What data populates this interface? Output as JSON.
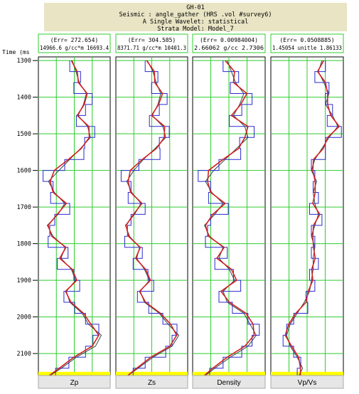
{
  "header": {
    "well": "GH-01",
    "seismic": "Seismic : angle_gather (HRS .vol #survey6)",
    "wavelet": "A Single Wavelet: statistical",
    "model": "Strata Model: Model_7"
  },
  "colors": {
    "header_bg": "#e8e4c4",
    "grid": "#2ecc2e",
    "curve_a": "#d42020",
    "curve_b": "#2a2ad0",
    "curve_c": "#2b4a4a",
    "marker": "#ffff00",
    "footer_bg": "#e6e6e6"
  },
  "chart_data": {
    "type": "line",
    "y_axis": {
      "label": "Time (ms",
      "range": [
        1290,
        2160
      ],
      "ticks": [
        1300,
        1400,
        1500,
        1600,
        1700,
        1800,
        1900,
        2000,
        2100
      ],
      "tick_labels": [
        "1300",
        "1400",
        "1500",
        "1600",
        "1700",
        "1800",
        "1900",
        "2000",
        "2100"
      ]
    },
    "grid": true,
    "tracks": [
      {
        "name": "Zp",
        "err_label": "(Err= 272.654)",
        "scale_label": "14966.6  g/cc*m  16693.4",
        "xlim": [
          14966.6,
          16693.4
        ],
        "series": [
          {
            "depth": [
              1300,
              1330,
              1360,
              1390,
              1420,
              1450,
              1480,
              1510,
              1540,
              1570,
              1600,
              1630,
              1660,
              1690,
              1720,
              1750,
              1780,
              1810,
              1840,
              1870,
              1900,
              1930,
              1960,
              1990,
              2020,
              2050,
              2080,
              2110,
              2140,
              2160
            ],
            "values": [
              15780,
              15870,
              15950,
              16120,
              16050,
              15920,
              16150,
              16220,
              15980,
              15720,
              15460,
              15210,
              15350,
              15600,
              15440,
              15180,
              15320,
              15610,
              15510,
              15760,
              15860,
              15640,
              15720,
              16020,
              16170,
              16480,
              16340,
              15880,
              15520,
              15250
            ]
          },
          {
            "depth": [
              1300,
              1330,
              1360,
              1390,
              1420,
              1450,
              1480,
              1510,
              1540,
              1570,
              1600,
              1630,
              1660,
              1690,
              1720,
              1750,
              1780,
              1810,
              1840,
              1870,
              1900,
              1930,
              1960,
              1990,
              2020,
              2050,
              2080,
              2110,
              2140,
              2160
            ],
            "values": [
              15720,
              15980,
              15820,
              16260,
              16100,
              15880,
              16320,
              16080,
              16060,
              15600,
              15080,
              15320,
              15260,
              15720,
              15360,
              15240,
              15200,
              15680,
              15420,
              15820,
              15960,
              15580,
              15840,
              16100,
              16420,
              16280,
              16100,
              15700,
              15380,
              15200
            ]
          },
          {
            "depth": [
              1300,
              1330,
              1360,
              1390,
              1420,
              1450,
              1480,
              1510,
              1540,
              1570,
              1600,
              1630,
              1660,
              1690,
              1720,
              1750,
              1780,
              1810,
              1840,
              1870,
              1900,
              1930,
              1960,
              1990,
              2020,
              2050,
              2080,
              2110,
              2140,
              2160
            ],
            "values": [
              15760,
              15900,
              15930,
              16140,
              16070,
              15900,
              16180,
              16190,
              16000,
              15690,
              15350,
              15250,
              15320,
              15640,
              15420,
              15200,
              15290,
              15630,
              15480,
              15780,
              15890,
              15620,
              15750,
              16050,
              16230,
              16420,
              16260,
              15820,
              15470,
              15230
            ]
          }
        ]
      },
      {
        "name": "Zs",
        "err_label": "(Err= 304.585)",
        "scale_label": "8371.71  g/cc*m  10401.3",
        "xlim": [
          8371.71,
          10401.3
        ],
        "series": [
          {
            "depth": [
              1300,
              1330,
              1360,
              1390,
              1420,
              1450,
              1480,
              1510,
              1540,
              1570,
              1600,
              1630,
              1660,
              1690,
              1720,
              1750,
              1780,
              1810,
              1840,
              1870,
              1900,
              1930,
              1960,
              1990,
              2020,
              2050,
              2080,
              2110,
              2140,
              2160
            ],
            "values": [
              9260,
              9420,
              9510,
              9640,
              9560,
              9400,
              9700,
              9780,
              9480,
              9150,
              8880,
              8680,
              8820,
              9080,
              8900,
              8640,
              8760,
              9040,
              8960,
              9180,
              9320,
              9060,
              9180,
              9600,
              9850,
              10150,
              9960,
              9420,
              9000,
              8720
            ]
          },
          {
            "depth": [
              1300,
              1330,
              1360,
              1390,
              1420,
              1450,
              1480,
              1510,
              1540,
              1570,
              1600,
              1630,
              1660,
              1690,
              1720,
              1750,
              1780,
              1810,
              1840,
              1870,
              1900,
              1930,
              1960,
              1990,
              2020,
              2050,
              2080,
              2110,
              2140,
              2160
            ],
            "values": [
              9200,
              9560,
              9380,
              9820,
              9600,
              9320,
              9880,
              9600,
              9620,
              9020,
              8520,
              8800,
              8720,
              9200,
              8800,
              8700,
              8620,
              9120,
              8860,
              9280,
              9440,
              8980,
              9300,
              9700,
              10100,
              9960,
              9780,
              9200,
              8860,
              8680
            ]
          },
          {
            "depth": [
              1300,
              1330,
              1360,
              1390,
              1420,
              1450,
              1480,
              1510,
              1540,
              1570,
              1600,
              1630,
              1660,
              1690,
              1720,
              1750,
              1780,
              1810,
              1840,
              1870,
              1900,
              1930,
              1960,
              1990,
              2020,
              2050,
              2080,
              2110,
              2140,
              2160
            ],
            "values": [
              9240,
              9460,
              9470,
              9690,
              9580,
              9380,
              9750,
              9740,
              9520,
              9120,
              8780,
              8720,
              8790,
              9110,
              8870,
              8660,
              8730,
              9060,
              8930,
              9210,
              9350,
              9040,
              9210,
              9630,
              9920,
              10090,
              9900,
              9360,
              8960,
              8710
            ]
          }
        ]
      },
      {
        "name": "Density",
        "err_label": "(Err= 0.00984004)",
        "scale_label": "2.66062  g/cc      2.7306",
        "xlim": [
          2.66062,
          2.7306
        ],
        "series": [
          {
            "depth": [
              1300,
              1330,
              1360,
              1390,
              1420,
              1450,
              1480,
              1510,
              1540,
              1570,
              1600,
              1630,
              1660,
              1690,
              1720,
              1750,
              1780,
              1810,
              1840,
              1870,
              1900,
              1930,
              1960,
              1990,
              2020,
              2050,
              2080,
              2110,
              2140,
              2160
            ],
            "values": [
              2.694,
              2.698,
              2.702,
              2.71,
              2.706,
              2.7,
              2.711,
              2.714,
              2.703,
              2.692,
              2.681,
              2.673,
              2.679,
              2.69,
              2.682,
              2.672,
              2.677,
              2.69,
              2.686,
              2.696,
              2.701,
              2.69,
              2.694,
              2.71,
              2.716,
              2.722,
              2.714,
              2.697,
              2.682,
              2.673
            ]
          },
          {
            "depth": [
              1300,
              1330,
              1360,
              1390,
              1420,
              1450,
              1480,
              1510,
              1540,
              1570,
              1600,
              1630,
              1660,
              1690,
              1720,
              1750,
              1780,
              1810,
              1840,
              1870,
              1900,
              1930,
              1960,
              1990,
              2020,
              2050,
              2080,
              2110,
              2140,
              2160
            ],
            "values": [
              2.69,
              2.705,
              2.697,
              2.718,
              2.708,
              2.696,
              2.72,
              2.706,
              2.707,
              2.686,
              2.666,
              2.678,
              2.676,
              2.695,
              2.678,
              2.675,
              2.673,
              2.694,
              2.682,
              2.7,
              2.707,
              2.686,
              2.699,
              2.714,
              2.725,
              2.718,
              2.708,
              2.69,
              2.677,
              2.67
            ]
          },
          {
            "depth": [
              1300,
              1330,
              1360,
              1390,
              1420,
              1450,
              1480,
              1510,
              1540,
              1570,
              1600,
              1630,
              1660,
              1690,
              1720,
              1750,
              1780,
              1810,
              1840,
              1870,
              1900,
              1930,
              1960,
              1990,
              2020,
              2050,
              2080,
              2110,
              2140,
              2160
            ],
            "values": [
              2.692,
              2.701,
              2.7,
              2.713,
              2.707,
              2.698,
              2.714,
              2.711,
              2.705,
              2.69,
              2.676,
              2.675,
              2.678,
              2.692,
              2.68,
              2.673,
              2.676,
              2.691,
              2.684,
              2.698,
              2.703,
              2.688,
              2.696,
              2.712,
              2.719,
              2.72,
              2.711,
              2.694,
              2.68,
              2.672
            ]
          }
        ]
      },
      {
        "name": "Vp/Vs",
        "err_label": "(Err= 0.0508885)",
        "scale_label": "1.45054  unitle  1.86133",
        "xlim": [
          1.45054,
          1.86133
        ],
        "series": [
          {
            "depth": [
              1300,
              1330,
              1360,
              1390,
              1420,
              1450,
              1480,
              1510,
              1540,
              1570,
              1600,
              1630,
              1660,
              1690,
              1720,
              1750,
              1780,
              1810,
              1840,
              1870,
              1900,
              1930,
              1960,
              1990,
              2020,
              2050,
              2080,
              2110,
              2140,
              2160
            ],
            "values": [
              1.74,
              1.72,
              1.75,
              1.78,
              1.76,
              1.8,
              1.83,
              1.78,
              1.74,
              1.7,
              1.68,
              1.71,
              1.69,
              1.7,
              1.72,
              1.7,
              1.68,
              1.7,
              1.69,
              1.69,
              1.68,
              1.67,
              1.64,
              1.6,
              1.56,
              1.54,
              1.56,
              1.6,
              1.63,
              1.61
            ]
          },
          {
            "depth": [
              1300,
              1330,
              1360,
              1390,
              1420,
              1450,
              1480,
              1510,
              1540,
              1570,
              1600,
              1630,
              1660,
              1690,
              1720,
              1750,
              1780,
              1810,
              1840,
              1870,
              1900,
              1930,
              1960,
              1990,
              2020,
              2050,
              2080,
              2110,
              2140,
              2160
            ],
            "values": [
              1.76,
              1.7,
              1.78,
              1.76,
              1.8,
              1.77,
              1.85,
              1.76,
              1.76,
              1.68,
              1.7,
              1.69,
              1.72,
              1.67,
              1.74,
              1.68,
              1.7,
              1.68,
              1.72,
              1.67,
              1.7,
              1.65,
              1.66,
              1.58,
              1.54,
              1.52,
              1.58,
              1.62,
              1.6,
              1.63
            ]
          },
          {
            "depth": [
              1300,
              1330,
              1360,
              1390,
              1420,
              1450,
              1480,
              1510,
              1540,
              1570,
              1600,
              1630,
              1660,
              1690,
              1720,
              1750,
              1780,
              1810,
              1840,
              1870,
              1900,
              1930,
              1960,
              1990,
              2020,
              2050,
              2080,
              2110,
              2140,
              2160
            ],
            "values": [
              1.75,
              1.715,
              1.76,
              1.772,
              1.772,
              1.79,
              1.838,
              1.772,
              1.748,
              1.692,
              1.688,
              1.702,
              1.702,
              1.688,
              1.728,
              1.692,
              1.688,
              1.692,
              1.702,
              1.682,
              1.688,
              1.662,
              1.65,
              1.592,
              1.552,
              1.532,
              1.568,
              1.608,
              1.618,
              1.618
            ]
          }
        ]
      }
    ],
    "marker_depth": 2150
  }
}
